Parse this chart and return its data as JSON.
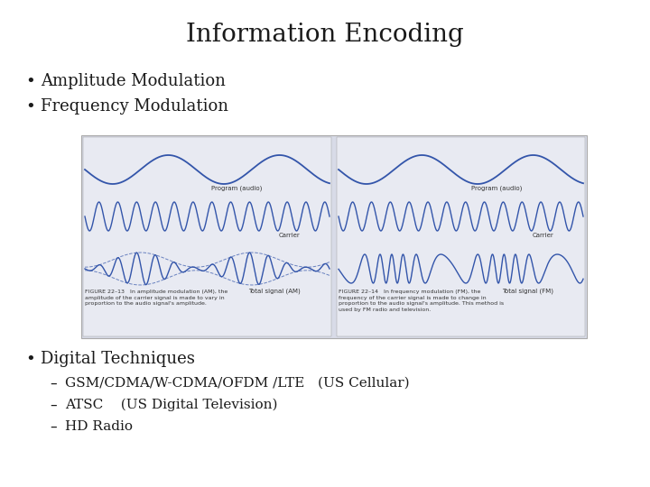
{
  "title": "Information Encoding",
  "title_fontsize": 20,
  "bg_color": "#ffffff",
  "bullet1": "Amplitude Modulation",
  "bullet2": "Frequency Modulation",
  "bullet3": "Digital Techniques",
  "sub1": "GSM/CDMA/W-CDMA/OFDM /LTE   (US Cellular)",
  "sub2": "ATSC    (US Digital Television)",
  "sub3": "HD Radio",
  "bullet_fontsize": 13,
  "sub_fontsize": 11,
  "text_color": "#1a1a1a",
  "wave_color": "#3355aa",
  "img_bg": "#d8dbe8",
  "panel_bg": "#e8eaf2",
  "caption_color": "#333333"
}
